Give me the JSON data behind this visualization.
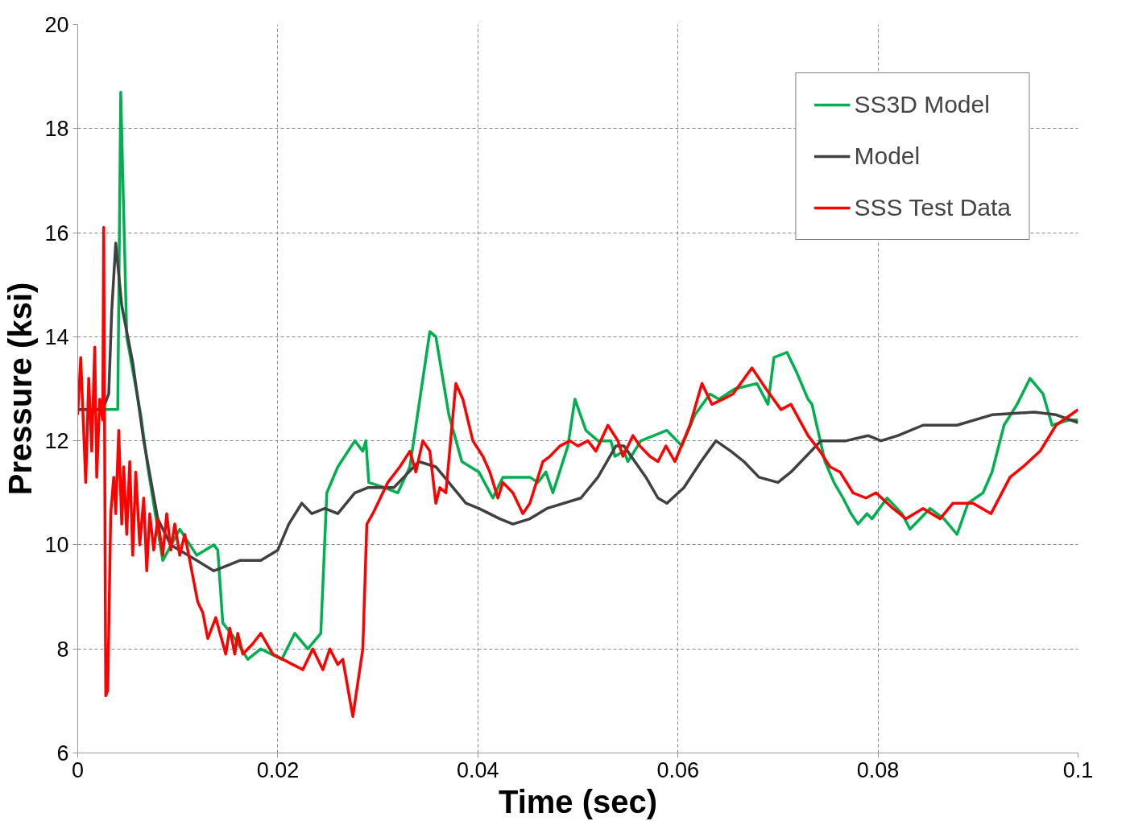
{
  "chart_data": {
    "type": "line",
    "xlabel": "Time (sec)",
    "ylabel": "Pressure (ksi)",
    "xlim": [
      0,
      0.1
    ],
    "xticks": [
      0,
      0.02,
      0.04,
      0.06,
      0.08,
      0.1
    ],
    "ylim": [
      6,
      20
    ],
    "yticks": [
      6,
      8,
      10,
      12,
      14,
      16,
      18,
      20
    ],
    "grid": true,
    "legend": "top right",
    "line_style": "solid",
    "marker": "none",
    "series": [
      {
        "name": "SS3D Model",
        "color": "#00b050",
        "x": [
          0,
          0.004,
          0.0043,
          0.0049,
          0.0063,
          0.007,
          0.0085,
          0.0102,
          0.0119,
          0.0136,
          0.014,
          0.0145,
          0.0157,
          0.017,
          0.0183,
          0.0204,
          0.0217,
          0.023,
          0.0243,
          0.0249,
          0.026,
          0.0277,
          0.0285,
          0.0288,
          0.0291,
          0.0307,
          0.032,
          0.0332,
          0.0352,
          0.0358,
          0.0371,
          0.0384,
          0.0401,
          0.0415,
          0.0425,
          0.0452,
          0.046,
          0.0468,
          0.0475,
          0.049,
          0.0497,
          0.0508,
          0.052,
          0.0533,
          0.0537,
          0.0546,
          0.055,
          0.0563,
          0.0589,
          0.0604,
          0.0617,
          0.0632,
          0.0641,
          0.0657,
          0.0679,
          0.069,
          0.0696,
          0.0709,
          0.0719,
          0.073,
          0.0734,
          0.0747,
          0.0756,
          0.0765,
          0.0773,
          0.078,
          0.0789,
          0.0794,
          0.0809,
          0.0824,
          0.0832,
          0.0852,
          0.0866,
          0.0879,
          0.089,
          0.0905,
          0.0914,
          0.0926,
          0.0939,
          0.0952,
          0.0965,
          0.0974,
          0.0991,
          0.1
        ],
        "values": [
          12.6,
          12.6,
          18.7,
          14,
          12.5,
          11.5,
          9.7,
          10.3,
          9.8,
          10,
          9.9,
          8.5,
          8.2,
          7.8,
          8,
          7.8,
          8.3,
          8,
          8.3,
          11,
          11.5,
          12,
          11.8,
          12,
          11.2,
          11.1,
          11,
          11.5,
          14.1,
          14,
          12.5,
          11.6,
          11.4,
          10.9,
          11.3,
          11.3,
          11.2,
          11.4,
          11,
          11.9,
          12.8,
          12.2,
          12,
          12,
          11.7,
          11.8,
          11.6,
          12,
          12.2,
          11.9,
          12.5,
          12.9,
          12.8,
          13,
          13.1,
          12.7,
          13.6,
          13.7,
          13.3,
          12.8,
          12.7,
          11.6,
          11.2,
          10.9,
          10.6,
          10.4,
          10.6,
          10.5,
          10.9,
          10.6,
          10.3,
          10.7,
          10.5,
          10.2,
          10.8,
          11,
          11.4,
          12.3,
          12.7,
          13.2,
          12.9,
          12.3,
          12.4,
          12.4
        ]
      },
      {
        "name": "Model",
        "color": "#404040",
        "x": [
          0,
          0.0025,
          0.0031,
          0.0034,
          0.0038,
          0.0044,
          0.0055,
          0.0066,
          0.008,
          0.0093,
          0.0119,
          0.0136,
          0.0149,
          0.0162,
          0.0183,
          0.02,
          0.0211,
          0.0224,
          0.0234,
          0.0247,
          0.026,
          0.0277,
          0.029,
          0.0316,
          0.0341,
          0.0358,
          0.0371,
          0.0388,
          0.0401,
          0.0422,
          0.0435,
          0.0452,
          0.0469,
          0.0503,
          0.052,
          0.0538,
          0.0546,
          0.0568,
          0.058,
          0.0589,
          0.0606,
          0.0623,
          0.0638,
          0.0653,
          0.0666,
          0.0681,
          0.07,
          0.0713,
          0.0743,
          0.0768,
          0.079,
          0.0803,
          0.082,
          0.0845,
          0.0879,
          0.0914,
          0.0956,
          0.0978,
          0.1
        ],
        "values": [
          12.6,
          12.6,
          12.9,
          14.5,
          15.8,
          14.6,
          13.5,
          12,
          10.5,
          10,
          9.7,
          9.5,
          9.6,
          9.7,
          9.7,
          9.9,
          10.4,
          10.8,
          10.6,
          10.7,
          10.6,
          11,
          11.1,
          11.1,
          11.6,
          11.5,
          11.2,
          10.8,
          10.7,
          10.5,
          10.4,
          10.5,
          10.7,
          10.9,
          11.3,
          11.9,
          11.9,
          11.3,
          10.9,
          10.8,
          11.1,
          11.6,
          12,
          11.8,
          11.6,
          11.3,
          11.2,
          11.4,
          12,
          12,
          12.1,
          12,
          12.1,
          12.3,
          12.3,
          12.5,
          12.55,
          12.5,
          12.35
        ]
      },
      {
        "name": "SSS Test Data",
        "color": "#ff0000",
        "x": [
          0,
          0.0003,
          0.0008,
          0.0011,
          0.0014,
          0.0017,
          0.0019,
          0.0022,
          0.0025,
          0.0026,
          0.0028,
          0.003,
          0.0033,
          0.0036,
          0.0038,
          0.0041,
          0.0044,
          0.0046,
          0.0049,
          0.0052,
          0.0055,
          0.0058,
          0.0062,
          0.0066,
          0.0069,
          0.0072,
          0.0076,
          0.008,
          0.0085,
          0.0089,
          0.0093,
          0.0097,
          0.0102,
          0.0107,
          0.011,
          0.012,
          0.0125,
          0.013,
          0.0138,
          0.0148,
          0.0152,
          0.0157,
          0.016,
          0.0165,
          0.0175,
          0.0183,
          0.0195,
          0.0205,
          0.0215,
          0.0225,
          0.0235,
          0.0245,
          0.0252,
          0.026,
          0.0265,
          0.0275,
          0.0285,
          0.0289,
          0.0295,
          0.0305,
          0.031,
          0.0322,
          0.0332,
          0.0338,
          0.0345,
          0.0352,
          0.0358,
          0.0362,
          0.0368,
          0.0378,
          0.0385,
          0.0395,
          0.0405,
          0.0412,
          0.042,
          0.0425,
          0.0435,
          0.0445,
          0.0452,
          0.0465,
          0.0472,
          0.0482,
          0.0492,
          0.05,
          0.051,
          0.0518,
          0.053,
          0.054,
          0.0545,
          0.0555,
          0.0562,
          0.0572,
          0.058,
          0.0588,
          0.0597,
          0.0612,
          0.0624,
          0.0634,
          0.0645,
          0.0655,
          0.0674,
          0.0688,
          0.0703,
          0.0713,
          0.073,
          0.0742,
          0.0752,
          0.0762,
          0.0775,
          0.0788,
          0.0798,
          0.0815,
          0.0828,
          0.0845,
          0.0862,
          0.0875,
          0.0895,
          0.0913,
          0.0932,
          0.0945,
          0.0962,
          0.0978,
          0.1
        ],
        "values": [
          12.5,
          13.6,
          11.2,
          13.2,
          11.8,
          13.8,
          11.3,
          12.8,
          12.4,
          16.1,
          7.1,
          7.2,
          10.6,
          11.3,
          10.6,
          12.2,
          10.4,
          11.5,
          10.2,
          11.6,
          9.8,
          11.4,
          10,
          10.9,
          9.5,
          10.6,
          9.9,
          10.5,
          9.8,
          10.6,
          9.9,
          10.4,
          9.8,
          10.2,
          9.9,
          8.9,
          8.7,
          8.2,
          8.6,
          7.9,
          8.4,
          7.9,
          8.3,
          7.9,
          8.1,
          8.3,
          7.9,
          7.8,
          7.7,
          7.6,
          8,
          7.6,
          8,
          7.7,
          7.8,
          6.7,
          8,
          10.4,
          10.6,
          11,
          11.2,
          11.5,
          11.8,
          11.4,
          12,
          11.8,
          10.8,
          11.1,
          11,
          13.1,
          12.8,
          12,
          11.7,
          11.4,
          10.9,
          11.2,
          11,
          10.6,
          10.8,
          11.6,
          11.7,
          11.9,
          12,
          11.9,
          12,
          11.8,
          12.3,
          12,
          11.7,
          12.1,
          11.9,
          11.7,
          11.6,
          11.9,
          11.6,
          12.3,
          13.1,
          12.7,
          12.8,
          12.9,
          13.4,
          13,
          12.6,
          12.7,
          12.1,
          11.8,
          11.5,
          11.4,
          11,
          10.9,
          11,
          10.7,
          10.5,
          10.7,
          10.5,
          10.8,
          10.8,
          10.6,
          11.3,
          11.5,
          11.8,
          12.3,
          12.6
        ]
      }
    ]
  }
}
